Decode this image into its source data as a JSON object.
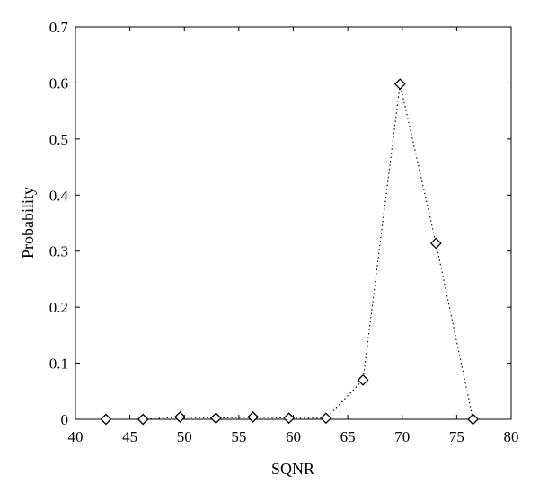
{
  "chart_data": {
    "type": "line",
    "title": "",
    "xlabel": "SQNR",
    "ylabel": "Probability",
    "xlim": [
      40,
      80
    ],
    "ylim": [
      0,
      0.7
    ],
    "xticks": [
      40,
      45,
      50,
      55,
      60,
      65,
      70,
      75,
      80
    ],
    "yticks": [
      0,
      0.1,
      0.2,
      0.3,
      0.4,
      0.5,
      0.6,
      0.7
    ],
    "xtick_labels": [
      "40",
      "45",
      "50",
      "55",
      "60",
      "65",
      "70",
      "75",
      "80"
    ],
    "ytick_labels": [
      "0",
      "0.1",
      "0.2",
      "0.3",
      "0.4",
      "0.5",
      "0.6",
      "0.7"
    ],
    "grid": false,
    "legend": "none",
    "series": [
      {
        "line_style": "dotted",
        "marker": "diamond",
        "color": "#000000",
        "points": [
          {
            "x": 42.8,
            "y": 0.0
          },
          {
            "x": 46.2,
            "y": 0.0
          },
          {
            "x": 49.6,
            "y": 0.004
          },
          {
            "x": 52.9,
            "y": 0.002
          },
          {
            "x": 56.3,
            "y": 0.004
          },
          {
            "x": 59.6,
            "y": 0.002
          },
          {
            "x": 63.0,
            "y": 0.002
          },
          {
            "x": 66.4,
            "y": 0.07
          },
          {
            "x": 69.8,
            "y": 0.598
          },
          {
            "x": 73.1,
            "y": 0.314
          },
          {
            "x": 76.5,
            "y": 0.0
          }
        ]
      }
    ]
  }
}
